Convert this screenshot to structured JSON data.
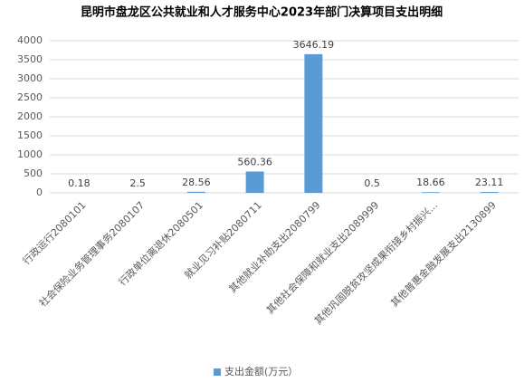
{
  "chart_data": {
    "type": "bar",
    "title": "昆明市盘龙区公共就业和人才服务中心2023年部门决算项目支出明细",
    "categories": [
      "行政运行2080101",
      "社会保险业务管理事务2080107",
      "行政单位离退休2080501",
      "就业见习补贴2080711",
      "其他就业补助支出2080799",
      "其他社会保障和就业支出2089999",
      "其他巩固脱贫攻坚成果衔接乡村振兴...",
      "其他普惠金融发展支出2130899"
    ],
    "series": [
      {
        "name": "支出金额(万元）",
        "color": "#5b9bd5",
        "values": [
          0.18,
          2.5,
          28.56,
          560.36,
          3646.19,
          0.5,
          18.66,
          23.11
        ]
      }
    ],
    "ylim": [
      0,
      4000
    ],
    "yticks": [
      0,
      500,
      1000,
      1500,
      2000,
      2500,
      3000,
      3500,
      4000
    ],
    "grid": true,
    "legend": "bottom"
  }
}
